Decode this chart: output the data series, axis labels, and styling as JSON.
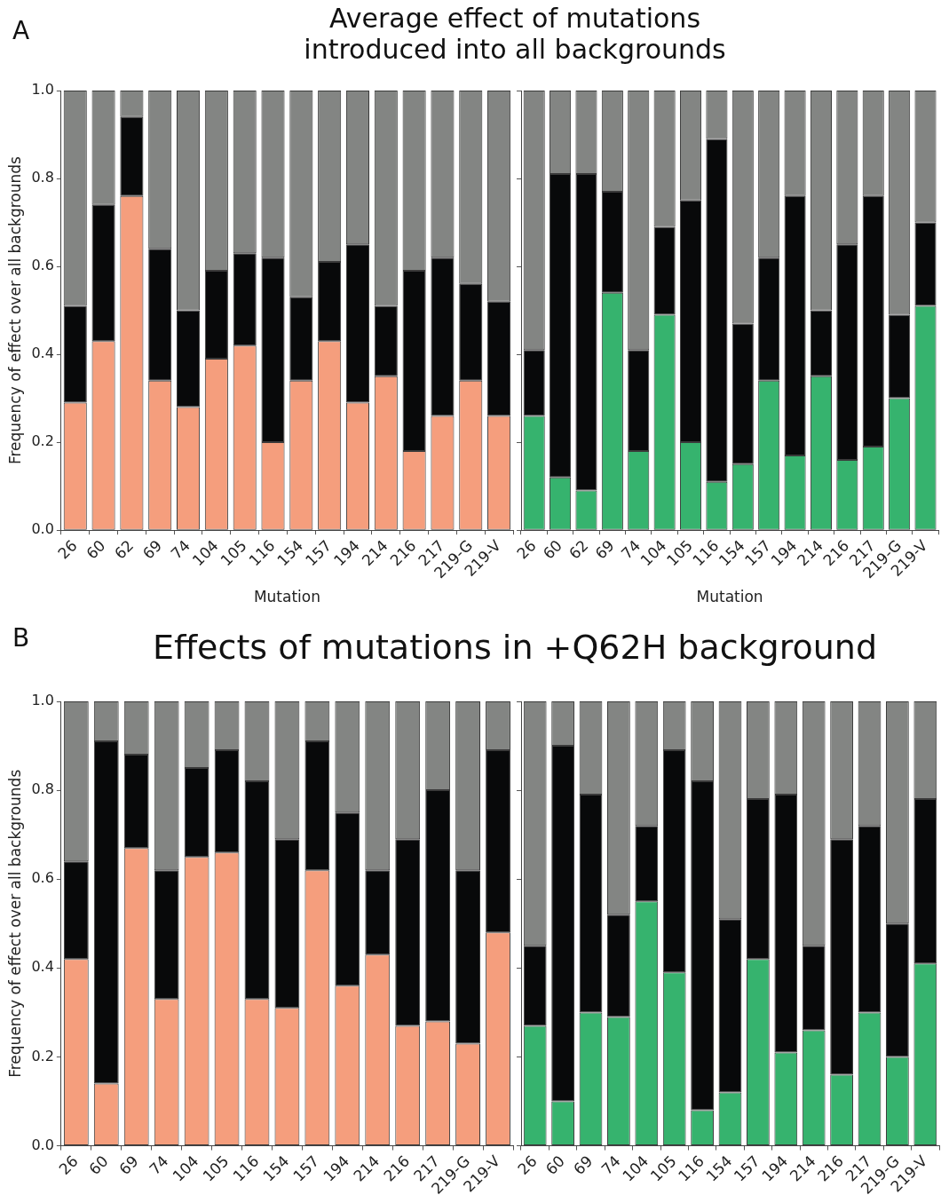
{
  "chart_data": [
    {
      "type": "bar",
      "stacked": true,
      "title": "Average effect of mutations\nintroduced into all backgrounds",
      "xlabel": "Mutation",
      "ylabel": "Frequency of effect over all backgrounds",
      "annotations": [
        "A"
      ],
      "categories": [
        "26",
        "60",
        "62",
        "69",
        "74",
        "104",
        "105",
        "116",
        "154",
        "157",
        "194",
        "214",
        "216",
        "217",
        "219-G",
        "219-V"
      ],
      "series": [
        {
          "color": "#f59e7d",
          "values": [
            0.29,
            0.43,
            0.76,
            0.34,
            0.28,
            0.39,
            0.42,
            0.2,
            0.34,
            0.43,
            0.29,
            0.35,
            0.18,
            0.26,
            0.34,
            0.26
          ]
        },
        {
          "color": "#08090a",
          "values": [
            0.22,
            0.31,
            0.18,
            0.3,
            0.22,
            0.2,
            0.21,
            0.42,
            0.19,
            0.18,
            0.36,
            0.16,
            0.41,
            0.36,
            0.22,
            0.26
          ]
        },
        {
          "color": "#838583",
          "values": [
            0.49,
            0.26,
            0.06,
            0.36,
            0.5,
            0.41,
            0.37,
            0.38,
            0.47,
            0.39,
            0.35,
            0.49,
            0.41,
            0.38,
            0.44,
            0.48
          ]
        }
      ],
      "ylim": [
        0,
        1
      ],
      "yticks": [
        {
          "value": 0,
          "label": "0.0"
        },
        {
          "value": 0.2,
          "label": "0.2"
        },
        {
          "value": 0.4,
          "label": "0.4"
        },
        {
          "value": 0.6,
          "label": "0.6"
        },
        {
          "value": 0.8,
          "label": "0.8"
        },
        {
          "value": 1,
          "label": "1.0"
        }
      ],
      "legend": false,
      "grid": false
    },
    {
      "type": "bar",
      "stacked": true,
      "xlabel": "Mutation",
      "tick_labels": "x",
      "categories": [
        "26",
        "60",
        "62",
        "69",
        "74",
        "104",
        "105",
        "116",
        "154",
        "157",
        "194",
        "214",
        "216",
        "217",
        "219-G",
        "219-V"
      ],
      "series": [
        {
          "color": "#36b36e",
          "values": [
            0.26,
            0.12,
            0.09,
            0.54,
            0.18,
            0.49,
            0.2,
            0.11,
            0.15,
            0.34,
            0.17,
            0.35,
            0.16,
            0.19,
            0.3,
            0.51
          ]
        },
        {
          "color": "#08090a",
          "values": [
            0.15,
            0.69,
            0.72,
            0.23,
            0.23,
            0.2,
            0.55,
            0.78,
            0.32,
            0.28,
            0.59,
            0.15,
            0.49,
            0.57,
            0.19,
            0.19
          ]
        },
        {
          "color": "#838583",
          "values": [
            0.59,
            0.19,
            0.19,
            0.23,
            0.59,
            0.31,
            0.25,
            0.11,
            0.53,
            0.38,
            0.24,
            0.5,
            0.35,
            0.24,
            0.51,
            0.3
          ]
        }
      ],
      "ylim": [
        0,
        1
      ],
      "yticks": [
        0,
        0.2,
        0.4,
        0.6,
        0.8,
        1
      ],
      "legend": false,
      "grid": false
    },
    {
      "type": "bar",
      "stacked": true,
      "title": "Effects of mutations in +Q62H background",
      "ylabel": "Frequency of effect over all backgrounds",
      "annotations": [
        "B"
      ],
      "categories": [
        "26",
        "60",
        "69",
        "74",
        "104",
        "105",
        "116",
        "154",
        "157",
        "194",
        "214",
        "216",
        "217",
        "219-G",
        "219-V"
      ],
      "series": [
        {
          "color": "#f59e7d",
          "values": [
            0.42,
            0.14,
            0.67,
            0.33,
            0.65,
            0.66,
            0.33,
            0.31,
            0.62,
            0.36,
            0.43,
            0.27,
            0.28,
            0.23,
            0.48
          ]
        },
        {
          "color": "#08090a",
          "values": [
            0.22,
            0.77,
            0.21,
            0.29,
            0.2,
            0.23,
            0.49,
            0.38,
            0.29,
            0.39,
            0.19,
            0.42,
            0.52,
            0.39,
            0.41
          ]
        },
        {
          "color": "#838583",
          "values": [
            0.36,
            0.09,
            0.12,
            0.38,
            0.15,
            0.11,
            0.18,
            0.31,
            0.09,
            0.25,
            0.38,
            0.31,
            0.2,
            0.38,
            0.11
          ]
        }
      ],
      "ylim": [
        0,
        1
      ],
      "yticks": [
        {
          "value": 0,
          "label": "0.0"
        },
        {
          "value": 0.2,
          "label": "0.2"
        },
        {
          "value": 0.4,
          "label": "0.4"
        },
        {
          "value": 0.6,
          "label": "0.6"
        },
        {
          "value": 0.8,
          "label": "0.8"
        },
        {
          "value": 1,
          "label": "1.0"
        }
      ],
      "legend": false,
      "grid": false
    },
    {
      "type": "bar",
      "stacked": true,
      "tick_labels": "x",
      "categories": [
        "26",
        "60",
        "69",
        "74",
        "104",
        "105",
        "116",
        "154",
        "157",
        "194",
        "214",
        "216",
        "217",
        "219-G",
        "219-V"
      ],
      "series": [
        {
          "color": "#36b36e",
          "values": [
            0.27,
            0.1,
            0.3,
            0.29,
            0.55,
            0.39,
            0.08,
            0.12,
            0.42,
            0.21,
            0.26,
            0.16,
            0.3,
            0.2,
            0.41
          ]
        },
        {
          "color": "#08090a",
          "values": [
            0.18,
            0.8,
            0.49,
            0.23,
            0.17,
            0.5,
            0.74,
            0.39,
            0.36,
            0.58,
            0.19,
            0.53,
            0.42,
            0.3,
            0.37
          ]
        },
        {
          "color": "#838583",
          "values": [
            0.55,
            0.1,
            0.21,
            0.48,
            0.28,
            0.11,
            0.18,
            0.49,
            0.22,
            0.21,
            0.55,
            0.31,
            0.28,
            0.5,
            0.22
          ]
        }
      ],
      "ylim": [
        0,
        1
      ],
      "yticks": [
        0,
        0.2,
        0.4,
        0.6,
        0.8,
        1
      ],
      "legend": false,
      "grid": false
    }
  ]
}
